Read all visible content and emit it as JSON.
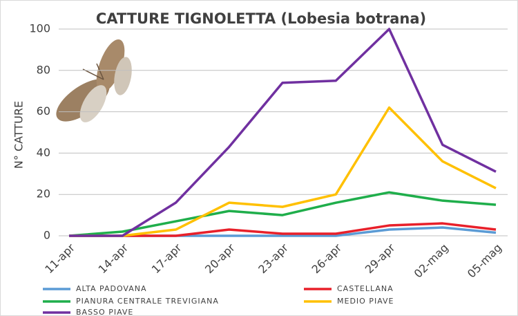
{
  "chart_data": {
    "type": "line",
    "title": "CATTURE TIGNOLETTA (Lobesia botrana)",
    "y_label": "N° CATTURE",
    "categories": [
      "11-apr",
      "14-apr",
      "17-apr",
      "20-apr",
      "23-apr",
      "26-apr",
      "29-apr",
      "02-mag",
      "05-mag"
    ],
    "series": [
      {
        "name": "ALTA PADOVANA",
        "color": "#5b9bd5",
        "values": [
          0,
          0,
          0,
          0,
          0,
          0,
          3,
          4,
          1.5
        ]
      },
      {
        "name": "CASTELLANA",
        "color": "#e8202a",
        "values": [
          0,
          0,
          0,
          3,
          1,
          1,
          5,
          6,
          3
        ]
      },
      {
        "name": "PIANURA CENTRALE TREVIGIANA",
        "color": "#1fae4b",
        "values": [
          0,
          2,
          7,
          12,
          10,
          16,
          21,
          17,
          15
        ]
      },
      {
        "name": "MEDIO PIAVE",
        "color": "#ffc000",
        "values": [
          0,
          0,
          3,
          16,
          14,
          20,
          62,
          36,
          23
        ]
      },
      {
        "name": "BASSO PIAVE",
        "color": "#7030a0",
        "values": [
          0,
          0,
          16,
          43,
          74,
          75,
          100,
          44,
          31
        ]
      }
    ],
    "ylim": [
      0,
      100
    ],
    "yticks": [
      0,
      20,
      40,
      60,
      80,
      100
    ],
    "grid": true
  }
}
